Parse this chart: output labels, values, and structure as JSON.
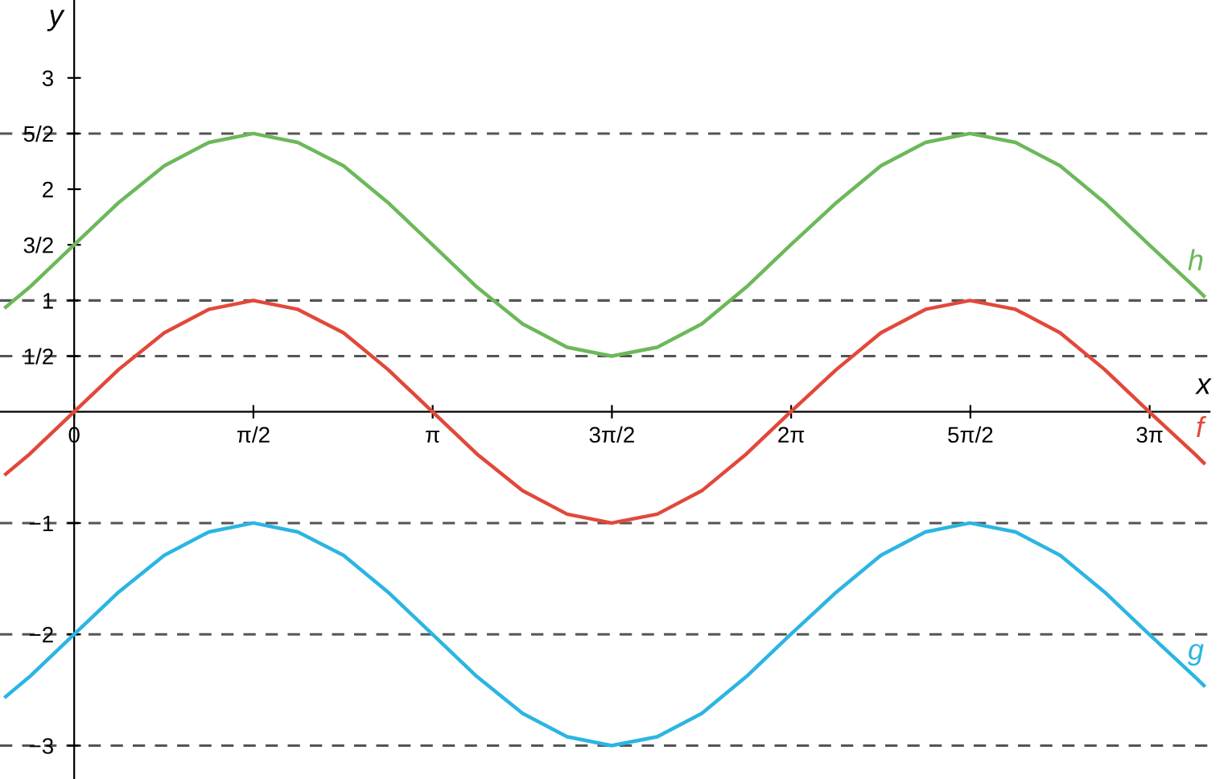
{
  "chart_data": {
    "type": "line",
    "xlabel": "x",
    "ylabel": "y",
    "x": [
      -0.6,
      -0.39,
      0,
      0.39,
      0.79,
      1.18,
      1.57,
      1.96,
      2.36,
      2.75,
      3.14,
      3.53,
      3.93,
      4.32,
      4.71,
      5.11,
      5.5,
      5.89,
      6.28,
      6.68,
      7.07,
      7.46,
      7.85,
      8.25,
      8.64,
      9.03,
      9.42,
      9.82,
      9.9
    ],
    "series": [
      {
        "name": "h",
        "color": "#6cb85a",
        "values": [
          0.94,
          1.12,
          1.5,
          1.88,
          2.21,
          2.42,
          2.5,
          2.42,
          2.21,
          1.88,
          1.5,
          1.12,
          0.79,
          0.58,
          0.5,
          0.58,
          0.79,
          1.12,
          1.5,
          1.88,
          2.21,
          2.42,
          2.5,
          2.42,
          2.21,
          1.88,
          1.5,
          1.12,
          1.04
        ]
      },
      {
        "name": "f",
        "color": "#e2483a",
        "values": [
          -0.56,
          -0.38,
          0,
          0.38,
          0.71,
          0.92,
          1,
          0.92,
          0.71,
          0.38,
          0,
          -0.38,
          -0.71,
          -0.92,
          -1,
          -0.92,
          -0.71,
          -0.38,
          0,
          0.38,
          0.71,
          0.92,
          1,
          0.92,
          0.71,
          0.38,
          0,
          -0.38,
          -0.46
        ]
      },
      {
        "name": "g",
        "color": "#2bb5e3",
        "values": [
          -2.56,
          -2.38,
          -2,
          -1.62,
          -1.29,
          -1.08,
          -1,
          -1.08,
          -1.29,
          -1.62,
          -2,
          -2.38,
          -2.71,
          -2.92,
          -3,
          -2.92,
          -2.71,
          -2.38,
          -2,
          -1.62,
          -1.29,
          -1.08,
          -1,
          -1.08,
          -1.29,
          -1.62,
          -2,
          -2.38,
          -2.46
        ]
      }
    ],
    "xlim": [
      -0.65,
      9.95
    ],
    "ylim": [
      -3.3,
      3.7
    ],
    "xticks": [
      {
        "value": 0,
        "label": "0"
      },
      {
        "value": 1.5708,
        "label": "π/2"
      },
      {
        "value": 3.1416,
        "label": "π"
      },
      {
        "value": 4.7124,
        "label": "3π/2"
      },
      {
        "value": 6.2832,
        "label": "2π"
      },
      {
        "value": 7.854,
        "label": "5π/2"
      },
      {
        "value": 9.4248,
        "label": "3π"
      }
    ],
    "yticks": [
      3,
      {
        "value": 2.5,
        "label": "5/2"
      },
      2,
      {
        "value": 1.5,
        "label": "3/2"
      },
      1,
      {
        "value": 0.5,
        "label": "1/2"
      },
      {
        "value": -1,
        "label": "−1"
      },
      {
        "value": -2,
        "label": "−2"
      },
      {
        "value": -3,
        "label": "−3"
      }
    ],
    "ref_lines": [
      {
        "axis": "y",
        "value": 2.5,
        "color": "#555555",
        "line_style": "dashed"
      },
      {
        "axis": "y",
        "value": 1,
        "color": "#555555",
        "line_style": "dashed"
      },
      {
        "axis": "y",
        "value": 0.5,
        "color": "#555555",
        "line_style": "dashed"
      },
      {
        "axis": "y",
        "value": -1,
        "color": "#555555",
        "line_style": "dashed"
      },
      {
        "axis": "y",
        "value": -2,
        "color": "#555555",
        "line_style": "dashed"
      },
      {
        "axis": "y",
        "value": -3,
        "color": "#555555",
        "line_style": "dashed"
      }
    ],
    "grid": false,
    "legend": false,
    "marker": "none",
    "line_style": "solid"
  }
}
